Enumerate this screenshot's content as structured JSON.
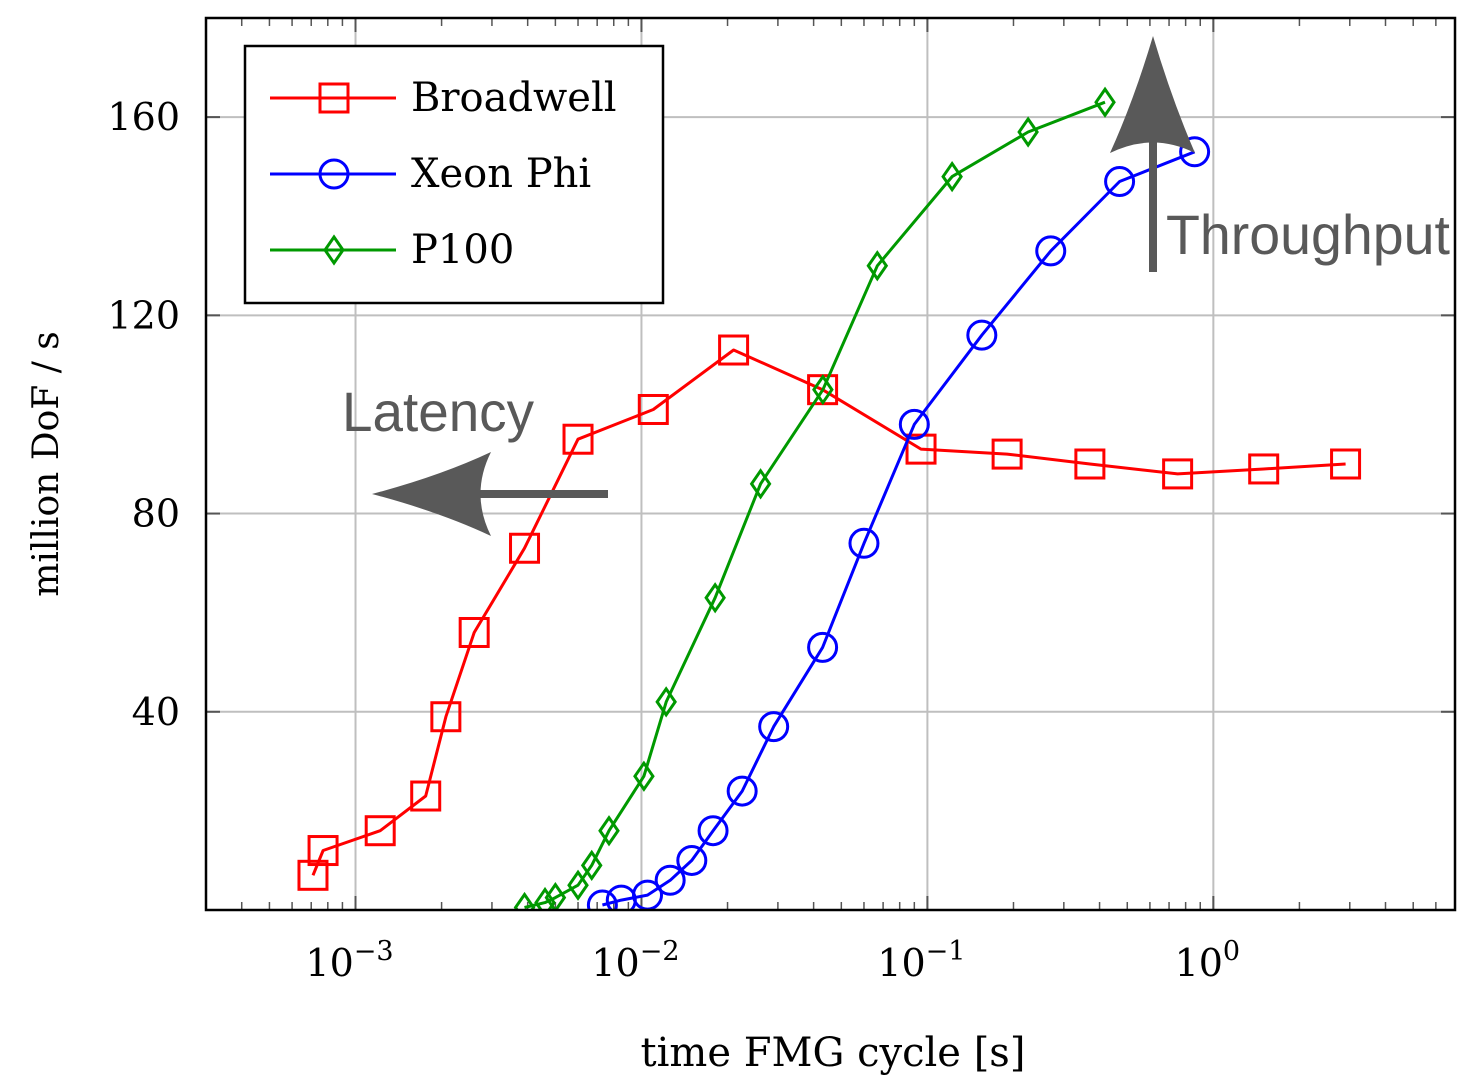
{
  "chart_data": {
    "type": "line",
    "xscale": "log",
    "xlabel": "time FMG cycle [s]",
    "ylabel": "million DoF / s",
    "xlim": [
      0.0003,
      7.0
    ],
    "ylim": [
      0,
      180
    ],
    "yticks": [
      40,
      80,
      120,
      160
    ],
    "xticks": [
      {
        "value": 0.001,
        "base": "10",
        "exp": "−3"
      },
      {
        "value": 0.01,
        "base": "10",
        "exp": "−2"
      },
      {
        "value": 0.1,
        "base": "10",
        "exp": "−1"
      },
      {
        "value": 1,
        "base": "10",
        "exp": "0"
      }
    ],
    "grid": true,
    "legend_position": "top-left",
    "series": [
      {
        "name": "Broadwell",
        "color": "#ff0000",
        "marker": "square",
        "x": [
          0.00071,
          0.00077,
          0.00122,
          0.00176,
          0.00207,
          0.0026,
          0.0039,
          0.006,
          0.011,
          0.021,
          0.043,
          0.095,
          0.19,
          0.37,
          0.75,
          1.5,
          2.9
        ],
        "y": [
          7,
          12,
          16,
          23,
          39,
          56,
          73,
          95,
          101,
          113,
          105,
          93,
          92,
          90,
          88,
          89,
          90
        ]
      },
      {
        "name": "Xeon Phi",
        "color": "#0000ff",
        "marker": "circle",
        "x": [
          0.0073,
          0.0085,
          0.0105,
          0.0126,
          0.015,
          0.0178,
          0.0225,
          0.029,
          0.043,
          0.06,
          0.09,
          0.155,
          0.27,
          0.47,
          0.86
        ],
        "y": [
          1,
          2,
          3,
          6,
          10,
          16,
          24,
          37,
          53,
          74,
          98,
          116,
          133,
          147,
          153
        ]
      },
      {
        "name": "P100",
        "color": "#009900",
        "marker": "diamond",
        "x": [
          0.0039,
          0.0046,
          0.005,
          0.006,
          0.0067,
          0.0077,
          0.0102,
          0.0122,
          0.0181,
          0.0261,
          0.0431,
          0.0668,
          0.122,
          0.225,
          0.418
        ],
        "y": [
          0.5,
          1.5,
          2.5,
          5,
          9,
          16,
          27,
          42,
          63,
          86,
          105,
          130,
          148,
          157,
          163
        ]
      }
    ],
    "annotations": [
      {
        "text": "Latency",
        "direction": "left"
      },
      {
        "text": "Throughput",
        "direction": "up"
      }
    ]
  }
}
